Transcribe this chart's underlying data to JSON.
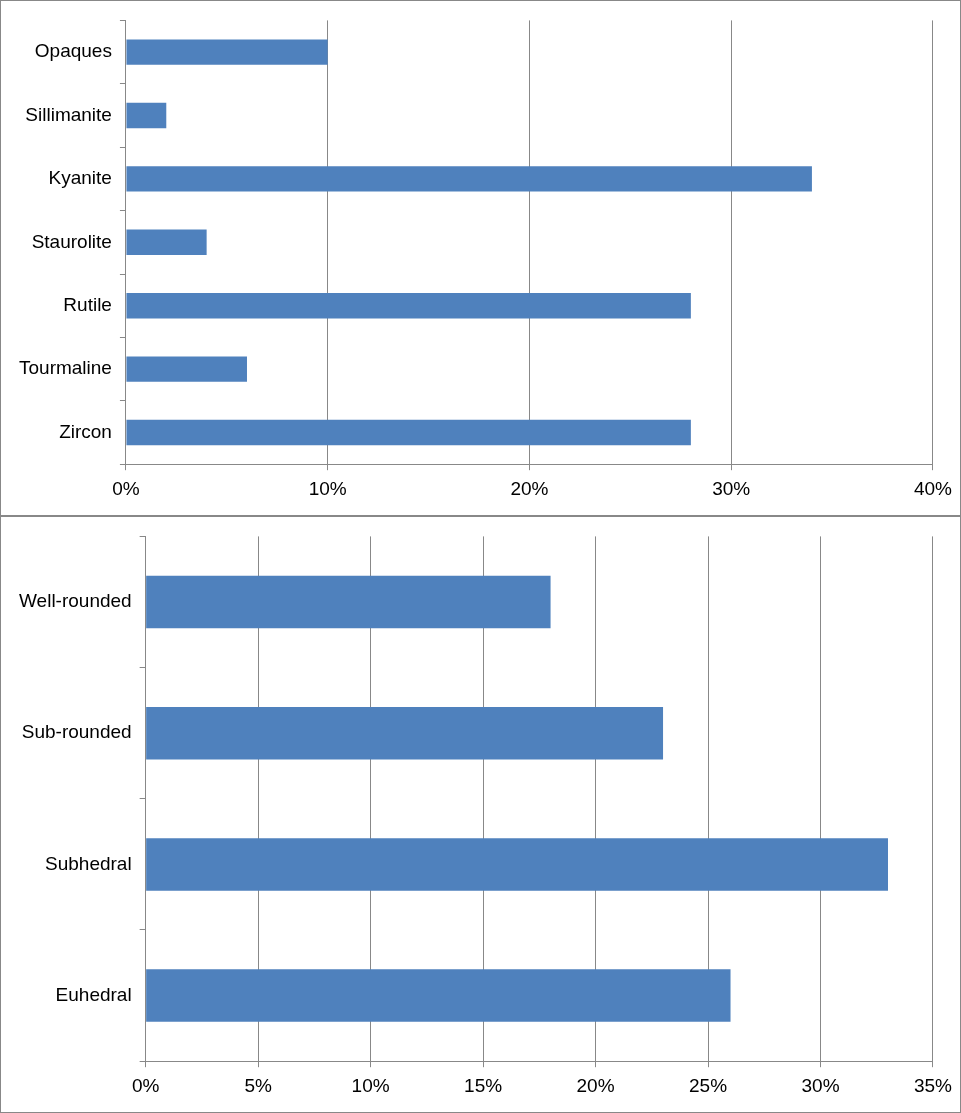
{
  "chart_data": [
    {
      "type": "bar",
      "orientation": "horizontal",
      "categories": [
        "Opaques",
        "Sillimanite",
        "Kyanite",
        "Staurolite",
        "Rutile",
        "Tourmaline",
        "Zircon"
      ],
      "values": [
        10,
        2,
        34,
        4,
        28,
        6,
        28
      ],
      "color": "#4f81bd",
      "xlim": [
        0,
        40
      ],
      "xticks": [
        {
          "value": 0,
          "label": "0%"
        },
        {
          "value": 10,
          "label": "10%"
        },
        {
          "value": 20,
          "label": "20%"
        },
        {
          "value": 30,
          "label": "30%"
        },
        {
          "value": 40,
          "label": "40%"
        }
      ],
      "grid": "x",
      "legend": false
    },
    {
      "type": "bar",
      "orientation": "horizontal",
      "categories": [
        "Well-rounded",
        "Sub-rounded",
        "Subhedral",
        "Euhedral"
      ],
      "values": [
        18,
        23,
        33,
        26
      ],
      "color": "#4f81bd",
      "xlim": [
        0,
        35
      ],
      "xticks": [
        {
          "value": 0,
          "label": "0%"
        },
        {
          "value": 5,
          "label": "5%"
        },
        {
          "value": 10,
          "label": "10%"
        },
        {
          "value": 15,
          "label": "15%"
        },
        {
          "value": 20,
          "label": "20%"
        },
        {
          "value": 25,
          "label": "25%"
        },
        {
          "value": 30,
          "label": "30%"
        },
        {
          "value": 35,
          "label": "35%"
        }
      ],
      "grid": "x",
      "legend": false
    }
  ]
}
